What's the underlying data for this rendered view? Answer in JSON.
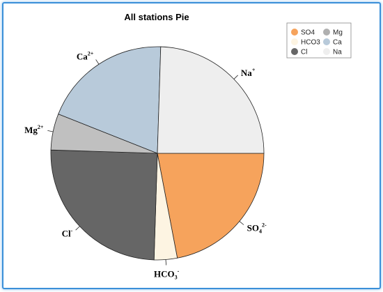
{
  "chart_data": {
    "type": "pie",
    "title": "All stations Pie",
    "start_angle_deg": 0,
    "direction": "clockwise",
    "slices": [
      {
        "key": "SO4",
        "base": "SO",
        "sub": "4",
        "sup": "2-",
        "value": 22,
        "color": "#f6a35c"
      },
      {
        "key": "HCO3",
        "base": "HCO",
        "sub": "3",
        "sup": "-",
        "value": 3.5,
        "color": "#fdf4e2"
      },
      {
        "key": "Cl",
        "base": "Cl",
        "sub": "",
        "sup": "-",
        "value": 25,
        "color": "#666666"
      },
      {
        "key": "Mg",
        "base": "Mg",
        "sub": "",
        "sup": "2+",
        "value": 5.5,
        "color": "#c0c0c0"
      },
      {
        "key": "Ca",
        "base": "Ca",
        "sub": "",
        "sup": "2+",
        "value": 19.5,
        "color": "#b8cada"
      },
      {
        "key": "Na",
        "base": "Na",
        "sub": "",
        "sup": "+",
        "value": 24.5,
        "color": "#eeeeee"
      }
    ],
    "legend": {
      "placement": "top-right",
      "items": [
        {
          "label": "SO4",
          "color": "#f6a35c"
        },
        {
          "label": "Mg",
          "color": "#b0b0b0"
        },
        {
          "label": "HCO3",
          "color": "#fdf4e2"
        },
        {
          "label": "Ca",
          "color": "#b8cada"
        },
        {
          "label": "Cl",
          "color": "#666666"
        },
        {
          "label": "Na",
          "color": "#eeeeee"
        }
      ]
    }
  }
}
